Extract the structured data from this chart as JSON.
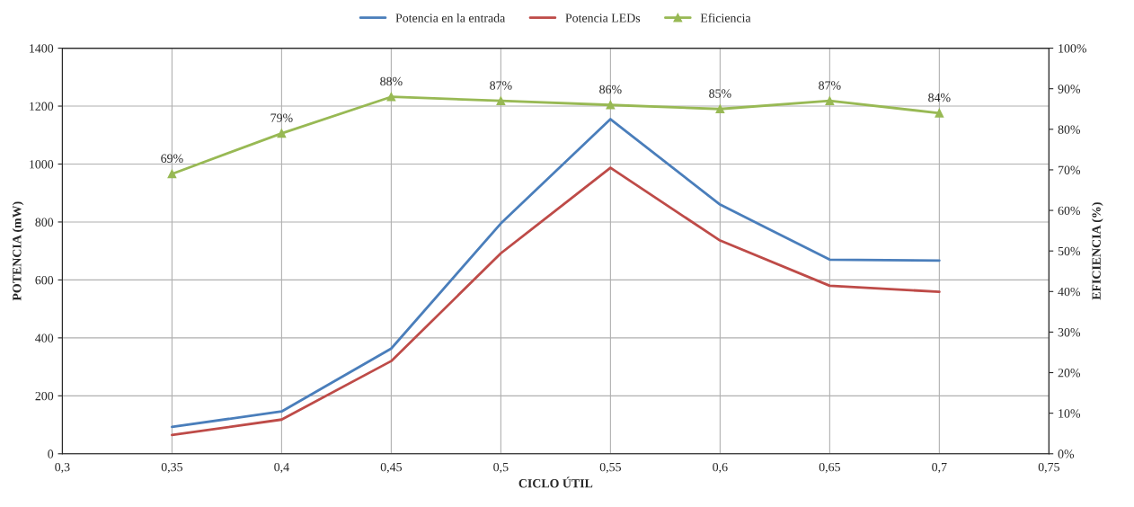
{
  "chart_data": {
    "type": "line",
    "xlabel": "CICLO ÚTIL",
    "ylabel": "POTENCIA (mW)",
    "y2label": "EFICIENCIA (%)",
    "x": [
      0.35,
      0.4,
      0.45,
      0.5,
      0.55,
      0.6,
      0.65,
      0.7
    ],
    "series": [
      {
        "name": "Potencia en la entrada",
        "color": "#4a7ebb",
        "values": [
          93,
          146,
          363,
          795,
          1155,
          860,
          670,
          667
        ],
        "marker": "none"
      },
      {
        "name": "Potencia LEDs",
        "color": "#be4b48",
        "values": [
          65,
          118,
          320,
          692,
          987,
          736,
          580,
          559
        ],
        "marker": "none"
      },
      {
        "name": "Eficiencia",
        "color": "#98b954",
        "axis": "y2",
        "marker": "triangle",
        "values": [
          69,
          79,
          88,
          87,
          86,
          85,
          87,
          84
        ],
        "value_labels": [
          "69%",
          "79%",
          "88%",
          "87%",
          "86%",
          "85%",
          "87%",
          "84%"
        ]
      }
    ],
    "xlim": [
      0.3,
      0.75
    ],
    "xticks": [
      {
        "value": 0.3,
        "label": "0,3"
      },
      {
        "value": 0.35,
        "label": "0,35"
      },
      {
        "value": 0.4,
        "label": "0,4"
      },
      {
        "value": 0.45,
        "label": "0,45"
      },
      {
        "value": 0.5,
        "label": "0,5"
      },
      {
        "value": 0.55,
        "label": "0,55"
      },
      {
        "value": 0.6,
        "label": "0,6"
      },
      {
        "value": 0.65,
        "label": "0,65"
      },
      {
        "value": 0.7,
        "label": "0,7"
      },
      {
        "value": 0.75,
        "label": "0,75"
      }
    ],
    "ylim": [
      0,
      1400
    ],
    "yticks": [
      0,
      200,
      400,
      600,
      800,
      1000,
      1200,
      1400
    ],
    "y2lim": [
      0,
      100
    ],
    "y2ticks": [
      {
        "value": 0,
        "label": "0%"
      },
      {
        "value": 10,
        "label": "10%"
      },
      {
        "value": 20,
        "label": "20%"
      },
      {
        "value": 30,
        "label": "30%"
      },
      {
        "value": 40,
        "label": "40%"
      },
      {
        "value": 50,
        "label": "50%"
      },
      {
        "value": 60,
        "label": "60%"
      },
      {
        "value": 70,
        "label": "70%"
      },
      {
        "value": 80,
        "label": "80%"
      },
      {
        "value": 90,
        "label": "90%"
      },
      {
        "value": 100,
        "label": "100%"
      }
    ],
    "grid": true,
    "legend": "top",
    "line_style": "solid"
  }
}
